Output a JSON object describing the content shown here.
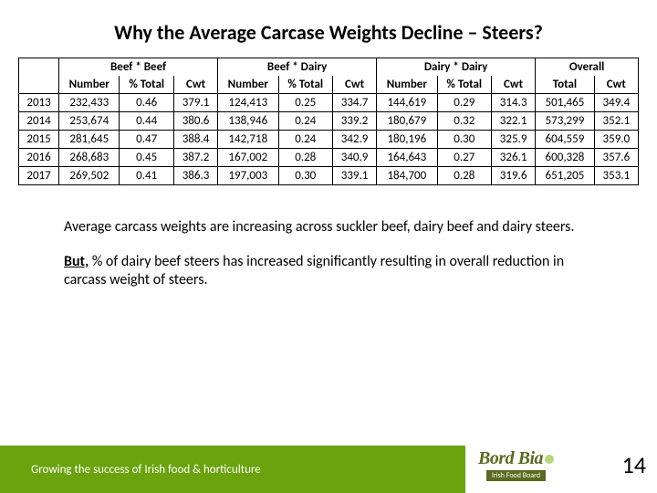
{
  "title": "Why the Average Carcase Weights Decline – Steers?",
  "table": {
    "groups": [
      "",
      "Beef * Beef",
      "Beef * Dairy",
      "Dairy * Dairy",
      "Overall"
    ],
    "columns": [
      "",
      "Number",
      "% Total",
      "Cwt",
      "Number",
      "% Total",
      "Cwt",
      "Number",
      "% Total",
      "Cwt",
      "Total",
      "Cwt"
    ],
    "rows": [
      [
        "2013",
        "232,433",
        "0.46",
        "379.1",
        "124,413",
        "0.25",
        "334.7",
        "144,619",
        "0.29",
        "314.3",
        "501,465",
        "349.4"
      ],
      [
        "2014",
        "253,674",
        "0.44",
        "380.6",
        "138,946",
        "0.24",
        "339.2",
        "180,679",
        "0.32",
        "322.1",
        "573,299",
        "352.1"
      ],
      [
        "2015",
        "281,645",
        "0.47",
        "388.4",
        "142,718",
        "0.24",
        "342.9",
        "180,196",
        "0.30",
        "325.9",
        "604,559",
        "359.0"
      ],
      [
        "2016",
        "268,683",
        "0.45",
        "387.2",
        "167,002",
        "0.28",
        "340.9",
        "164,643",
        "0.27",
        "326.1",
        "600,328",
        "357.6"
      ],
      [
        "2017",
        "269,502",
        "0.41",
        "386.3",
        "197,003",
        "0.30",
        "339.1",
        "184,700",
        "0.28",
        "319.6",
        "651,205",
        "353.1"
      ]
    ]
  },
  "para1": "Average carcass weights are increasing across suckler beef, dairy beef and dairy steers.",
  "para2_lead": "But,",
  "para2_rest": " % of dairy beef steers has increased significantly resulting in overall reduction in carcass weight of steers.",
  "footer_tagline": "Growing the success of Irish food & horticulture",
  "logo_main": "Bord Bia",
  "logo_sub": "Irish Food Board",
  "page_number": "14",
  "colors": {
    "green": "#6aa30d",
    "olive": "#5a6a1e"
  }
}
